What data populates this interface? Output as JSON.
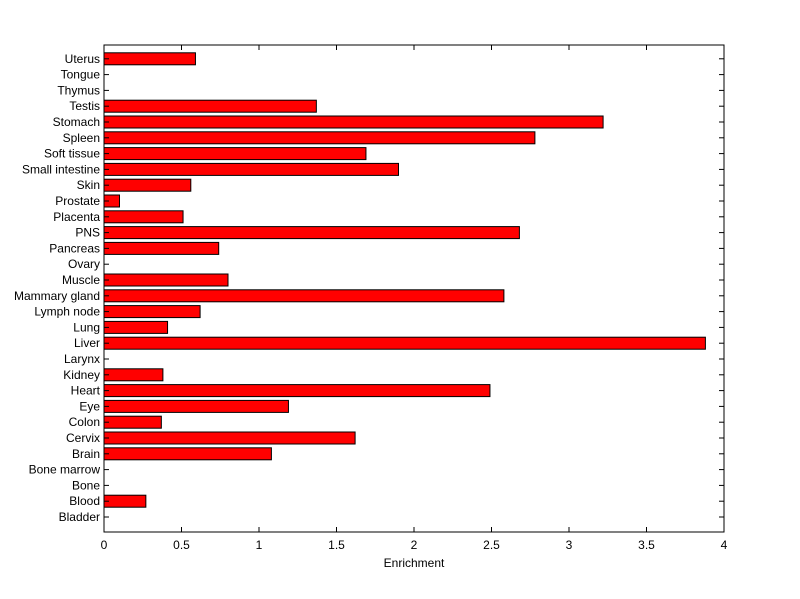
{
  "chart_data": {
    "type": "bar",
    "orientation": "horizontal",
    "categories": [
      "Bladder",
      "Blood",
      "Bone",
      "Bone marrow",
      "Brain",
      "Cervix",
      "Colon",
      "Eye",
      "Heart",
      "Kidney",
      "Larynx",
      "Liver",
      "Lung",
      "Lymph node",
      "Mammary gland",
      "Muscle",
      "Ovary",
      "Pancreas",
      "PNS",
      "Placenta",
      "Prostate",
      "Skin",
      "Small intestine",
      "Soft tissue",
      "Spleen",
      "Stomach",
      "Testis",
      "Thymus",
      "Tongue",
      "Uterus"
    ],
    "values": [
      0,
      0.27,
      0,
      0,
      1.08,
      1.62,
      0.37,
      1.19,
      2.49,
      0.38,
      0,
      3.88,
      0.41,
      0.62,
      2.58,
      0.8,
      0,
      0.74,
      2.68,
      0.51,
      0.1,
      0.56,
      1.9,
      1.69,
      2.78,
      3.22,
      1.37,
      0,
      0,
      0.59
    ],
    "xlabel": "Enrichment",
    "ylabel": "",
    "title": "",
    "xlim": [
      0,
      4
    ],
    "xticks": [
      "0",
      "0.5",
      "1",
      "1.5",
      "2",
      "2.5",
      "3",
      "3.5",
      "4"
    ],
    "grid": false,
    "bar_color": "#ff0000",
    "edge_color": "#000000"
  }
}
